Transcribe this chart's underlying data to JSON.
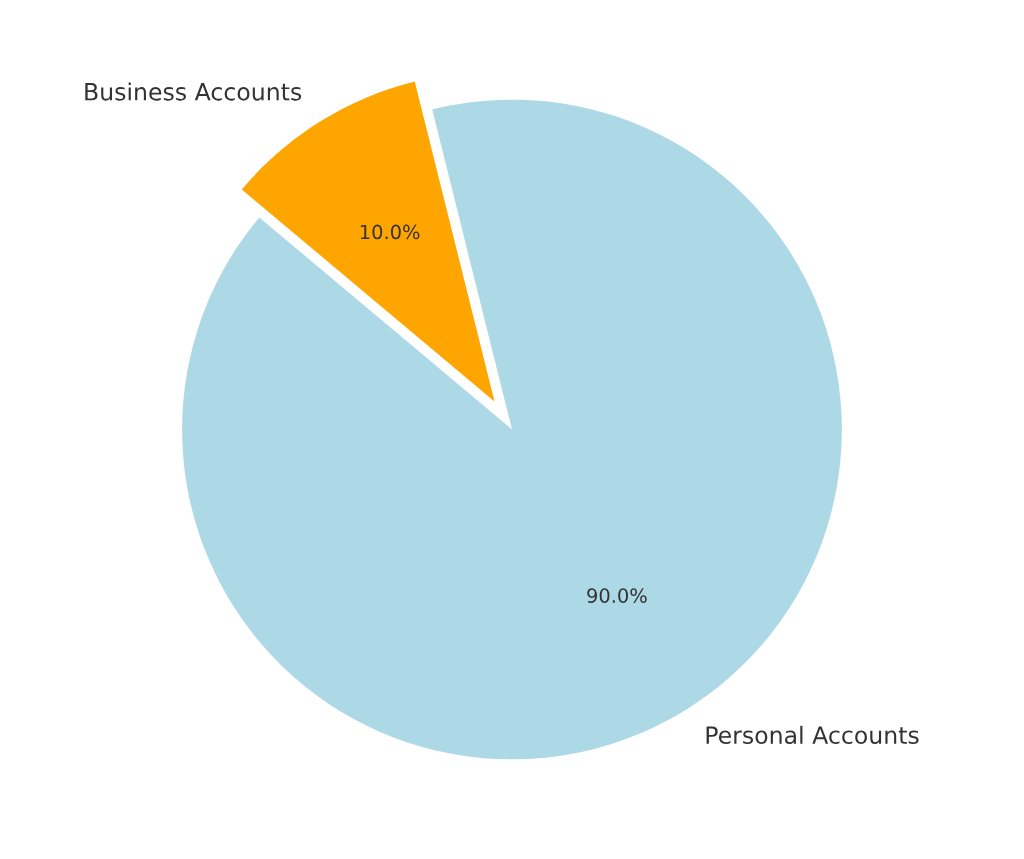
{
  "chart_data": {
    "type": "pie",
    "categories": [
      "Personal Accounts",
      "Business Accounts"
    ],
    "values": [
      90,
      10
    ],
    "colors": [
      "#add8e6",
      "#ffa500"
    ],
    "value_labels": [
      "90.0%",
      "10.0%"
    ]
  }
}
